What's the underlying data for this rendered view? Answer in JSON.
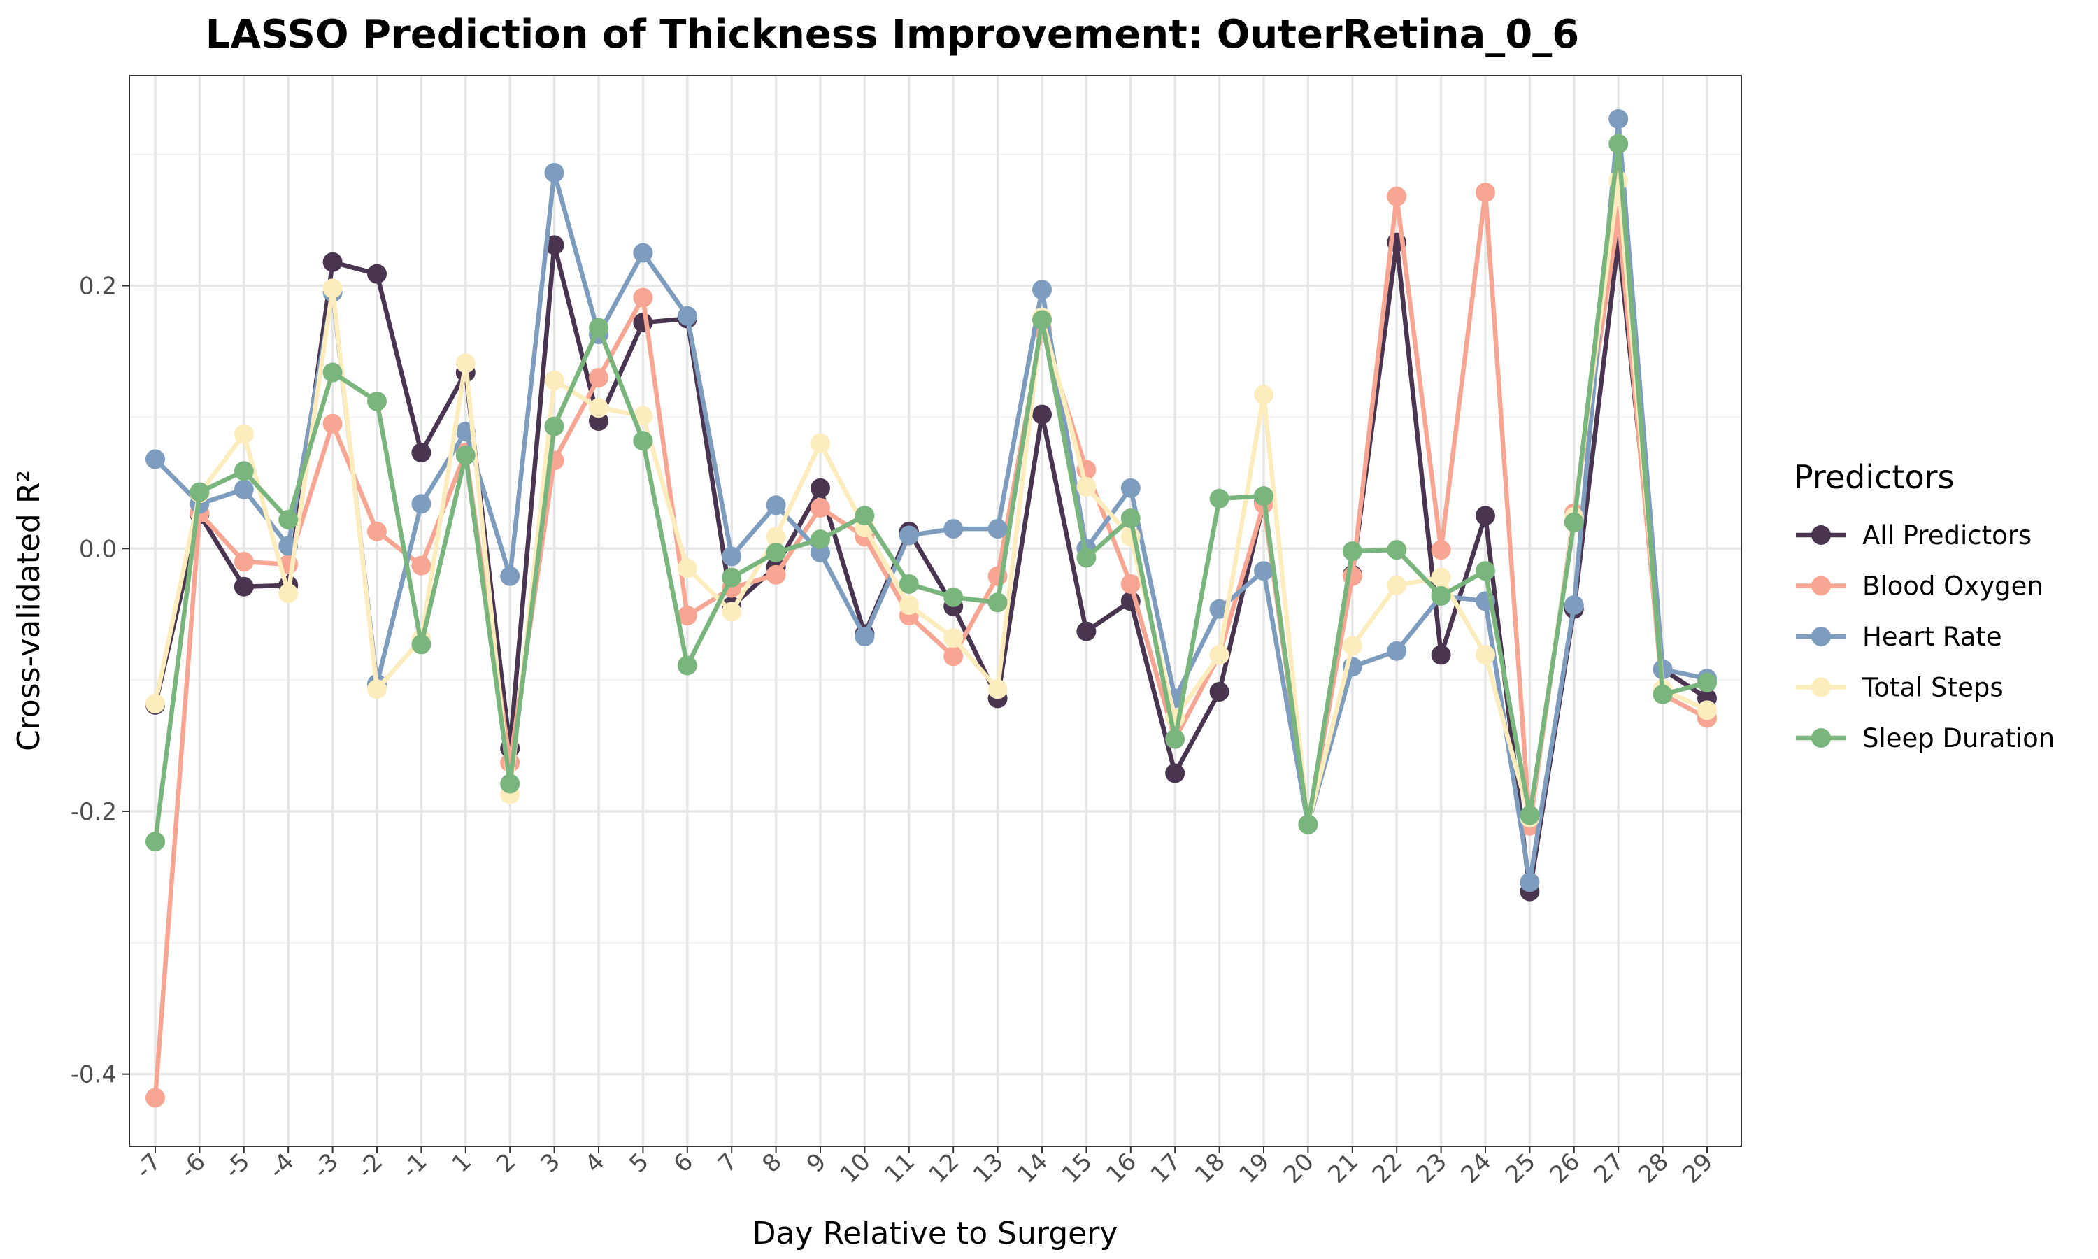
{
  "chart_data": {
    "type": "line",
    "title": "LASSO Prediction of Thickness Improvement: OuterRetina_0_6",
    "xlabel": "Day Relative to Surgery",
    "ylabel": "Cross-validated R²",
    "categories": [
      "-7",
      "-6",
      "-5",
      "-4",
      "-3",
      "-2",
      "-1",
      "1",
      "2",
      "3",
      "4",
      "5",
      "6",
      "7",
      "8",
      "9",
      "10",
      "11",
      "12",
      "13",
      "14",
      "15",
      "16",
      "17",
      "18",
      "19",
      "20",
      "21",
      "22",
      "23",
      "24",
      "25",
      "26",
      "27",
      "28",
      "29"
    ],
    "ylim": [
      -0.455,
      0.36
    ],
    "yticks": [
      -0.4,
      -0.2,
      0.0,
      0.2
    ],
    "ytick_labels": [
      "-0.4",
      "-0.2",
      "0.0",
      "0.2"
    ],
    "grid": true,
    "legend_title": "Predictors",
    "legend_position": "right",
    "series": [
      {
        "name": "All Predictors",
        "color": "#4a3550",
        "values": [
          -0.119,
          0.026,
          -0.029,
          -0.028,
          0.218,
          0.209,
          0.073,
          0.134,
          -0.152,
          0.231,
          0.097,
          0.172,
          0.175,
          -0.044,
          -0.014,
          0.046,
          -0.065,
          0.013,
          -0.044,
          -0.114,
          0.102,
          -0.063,
          -0.04,
          -0.171,
          -0.109,
          0.035,
          -0.21,
          -0.02,
          0.233,
          -0.081,
          0.025,
          -0.261,
          -0.046,
          0.235,
          -0.092,
          -0.114
        ]
      },
      {
        "name": "Blood Oxygen",
        "color": "#f6a692",
        "values": [
          -0.418,
          0.027,
          -0.01,
          -0.012,
          0.095,
          0.013,
          -0.013,
          0.073,
          -0.163,
          0.067,
          0.13,
          0.191,
          -0.051,
          -0.03,
          -0.02,
          0.031,
          0.009,
          -0.051,
          -0.082,
          -0.021,
          0.167,
          0.06,
          -0.027,
          -0.145,
          -0.081,
          0.034,
          -0.21,
          -0.021,
          0.268,
          -0.001,
          0.271,
          -0.211,
          0.027,
          0.253,
          -0.111,
          -0.129
        ]
      },
      {
        "name": "Heart Rate",
        "color": "#7e9cbd",
        "values": [
          0.068,
          0.034,
          0.045,
          0.002,
          0.195,
          -0.103,
          0.034,
          0.089,
          -0.021,
          0.286,
          0.163,
          0.225,
          0.177,
          -0.006,
          0.033,
          -0.003,
          -0.067,
          0.01,
          0.015,
          0.015,
          0.197,
          0.0,
          0.046,
          -0.114,
          -0.046,
          -0.017,
          -0.21,
          -0.09,
          -0.078,
          -0.036,
          -0.04,
          -0.254,
          -0.043,
          0.327,
          -0.092,
          -0.099
        ]
      },
      {
        "name": "Total Steps",
        "color": "#fdedbe",
        "values": [
          -0.118,
          0.042,
          0.087,
          -0.034,
          0.198,
          -0.107,
          -0.069,
          0.141,
          -0.187,
          0.128,
          0.107,
          0.101,
          -0.015,
          -0.048,
          0.009,
          0.08,
          0.016,
          -0.043,
          -0.068,
          -0.107,
          0.176,
          0.047,
          0.009,
          -0.129,
          -0.081,
          0.117,
          -0.21,
          -0.074,
          -0.028,
          -0.022,
          -0.081,
          -0.205,
          0.024,
          0.28,
          -0.107,
          -0.123
        ]
      },
      {
        "name": "Sleep Duration",
        "color": "#7bb57e",
        "values": [
          -0.223,
          0.043,
          0.059,
          0.022,
          0.134,
          0.112,
          -0.073,
          0.071,
          -0.179,
          0.093,
          0.168,
          0.082,
          -0.089,
          -0.022,
          -0.003,
          0.007,
          0.025,
          -0.027,
          -0.037,
          -0.041,
          0.174,
          -0.007,
          0.023,
          -0.145,
          0.038,
          0.04,
          -0.21,
          -0.002,
          -0.001,
          -0.036,
          -0.017,
          -0.203,
          0.02,
          0.308,
          -0.111,
          -0.102
        ]
      }
    ]
  }
}
